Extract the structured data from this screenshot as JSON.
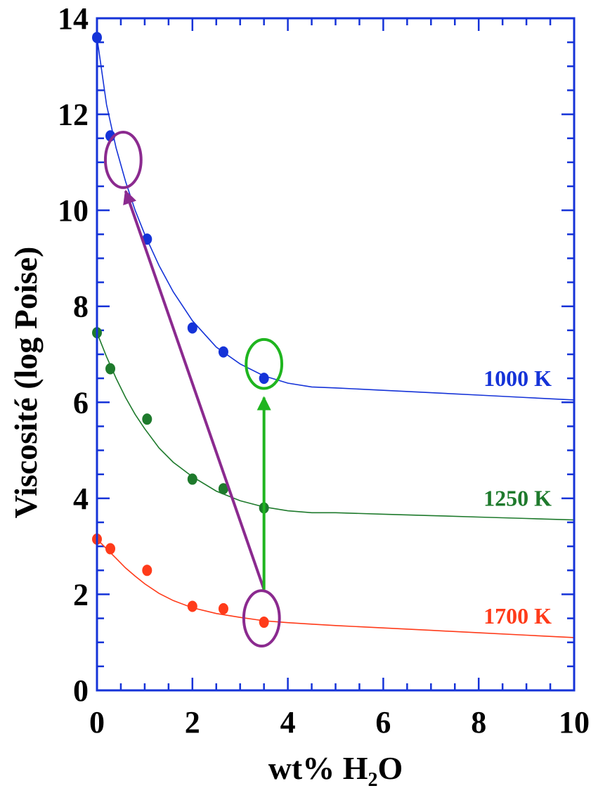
{
  "chart_data": {
    "type": "scatter",
    "xlabel": "wt% H2O",
    "xlabel_parts": {
      "main": "wt% H",
      "sub": "2",
      "tail": "O"
    },
    "ylabel": "Viscosité (log Poise)",
    "xlim": [
      0,
      10
    ],
    "ylim": [
      0,
      14
    ],
    "x_ticks": [
      0,
      2,
      4,
      6,
      8,
      10
    ],
    "y_ticks": [
      0,
      2,
      4,
      6,
      8,
      10,
      12,
      14
    ],
    "x_tick_labels": [
      "0",
      "2",
      "4",
      "6",
      "8",
      "10"
    ],
    "y_tick_labels": [
      "0",
      "2",
      "4",
      "6",
      "8",
      "10",
      "12",
      "14"
    ],
    "series": [
      {
        "name": "1000 K",
        "color": "#1533d8",
        "points": [
          [
            0.0,
            13.6
          ],
          [
            0.28,
            11.55
          ],
          [
            1.05,
            9.4
          ],
          [
            2.0,
            7.55
          ],
          [
            2.65,
            7.05
          ],
          [
            3.5,
            6.5
          ]
        ],
        "fit": [
          [
            0.0,
            13.6
          ],
          [
            0.2,
            12.2
          ],
          [
            0.4,
            11.3
          ],
          [
            0.6,
            10.6
          ],
          [
            0.8,
            10.0
          ],
          [
            1.0,
            9.5
          ],
          [
            1.3,
            8.85
          ],
          [
            1.6,
            8.3
          ],
          [
            2.0,
            7.7
          ],
          [
            2.5,
            7.15
          ],
          [
            3.0,
            6.8
          ],
          [
            3.5,
            6.55
          ],
          [
            4.0,
            6.4
          ],
          [
            4.5,
            6.32
          ],
          [
            5.0,
            6.3
          ],
          [
            6.0,
            6.25
          ],
          [
            7.0,
            6.2
          ],
          [
            8.0,
            6.15
          ],
          [
            9.0,
            6.1
          ],
          [
            10.0,
            6.05
          ]
        ]
      },
      {
        "name": "1250 K",
        "color": "#1e7a2c",
        "points": [
          [
            0.0,
            7.45
          ],
          [
            0.28,
            6.7
          ],
          [
            1.05,
            5.65
          ],
          [
            2.0,
            4.4
          ],
          [
            2.65,
            4.2
          ],
          [
            3.5,
            3.8
          ]
        ],
        "fit": [
          [
            0.0,
            7.45
          ],
          [
            0.2,
            6.95
          ],
          [
            0.4,
            6.5
          ],
          [
            0.6,
            6.1
          ],
          [
            0.8,
            5.75
          ],
          [
            1.0,
            5.45
          ],
          [
            1.3,
            5.05
          ],
          [
            1.6,
            4.75
          ],
          [
            2.0,
            4.45
          ],
          [
            2.5,
            4.15
          ],
          [
            3.0,
            3.95
          ],
          [
            3.5,
            3.82
          ],
          [
            4.0,
            3.74
          ],
          [
            4.5,
            3.7
          ],
          [
            5.0,
            3.7
          ],
          [
            6.0,
            3.67
          ],
          [
            7.0,
            3.64
          ],
          [
            8.0,
            3.61
          ],
          [
            9.0,
            3.58
          ],
          [
            10.0,
            3.55
          ]
        ]
      },
      {
        "name": "1700 K",
        "color": "#ff3b1a",
        "points": [
          [
            0.0,
            3.15
          ],
          [
            0.28,
            2.95
          ],
          [
            1.05,
            2.5
          ],
          [
            2.0,
            1.75
          ],
          [
            2.65,
            1.7
          ],
          [
            3.5,
            1.42
          ]
        ],
        "fit": [
          [
            0.0,
            3.15
          ],
          [
            0.2,
            2.95
          ],
          [
            0.4,
            2.75
          ],
          [
            0.6,
            2.55
          ],
          [
            0.8,
            2.38
          ],
          [
            1.0,
            2.22
          ],
          [
            1.3,
            2.02
          ],
          [
            1.6,
            1.87
          ],
          [
            2.0,
            1.72
          ],
          [
            2.5,
            1.6
          ],
          [
            3.0,
            1.52
          ],
          [
            3.5,
            1.45
          ],
          [
            4.0,
            1.41
          ],
          [
            4.5,
            1.38
          ],
          [
            5.0,
            1.35
          ],
          [
            6.0,
            1.3
          ],
          [
            7.0,
            1.25
          ],
          [
            8.0,
            1.2
          ],
          [
            9.0,
            1.15
          ],
          [
            10.0,
            1.1
          ]
        ]
      }
    ],
    "annotations": {
      "circles": [
        {
          "cx": 0.55,
          "cy": 11.05,
          "rx": 0.55,
          "ry": 0.85,
          "color": "#8b2a8f"
        },
        {
          "cx": 3.5,
          "cy": 6.8,
          "rx": 0.55,
          "ry": 0.75,
          "color": "#1fb51f"
        },
        {
          "cx": 3.45,
          "cy": 1.5,
          "rx": 0.55,
          "ry": 0.85,
          "color": "#8b2a8f"
        }
      ],
      "arrows": [
        {
          "from": [
            3.5,
            2.1
          ],
          "to": [
            0.6,
            10.4
          ],
          "color": "#8b2a8f"
        },
        {
          "from": [
            3.5,
            2.1
          ],
          "to": [
            3.5,
            6.1
          ],
          "color": "#1fb51f"
        }
      ]
    }
  }
}
